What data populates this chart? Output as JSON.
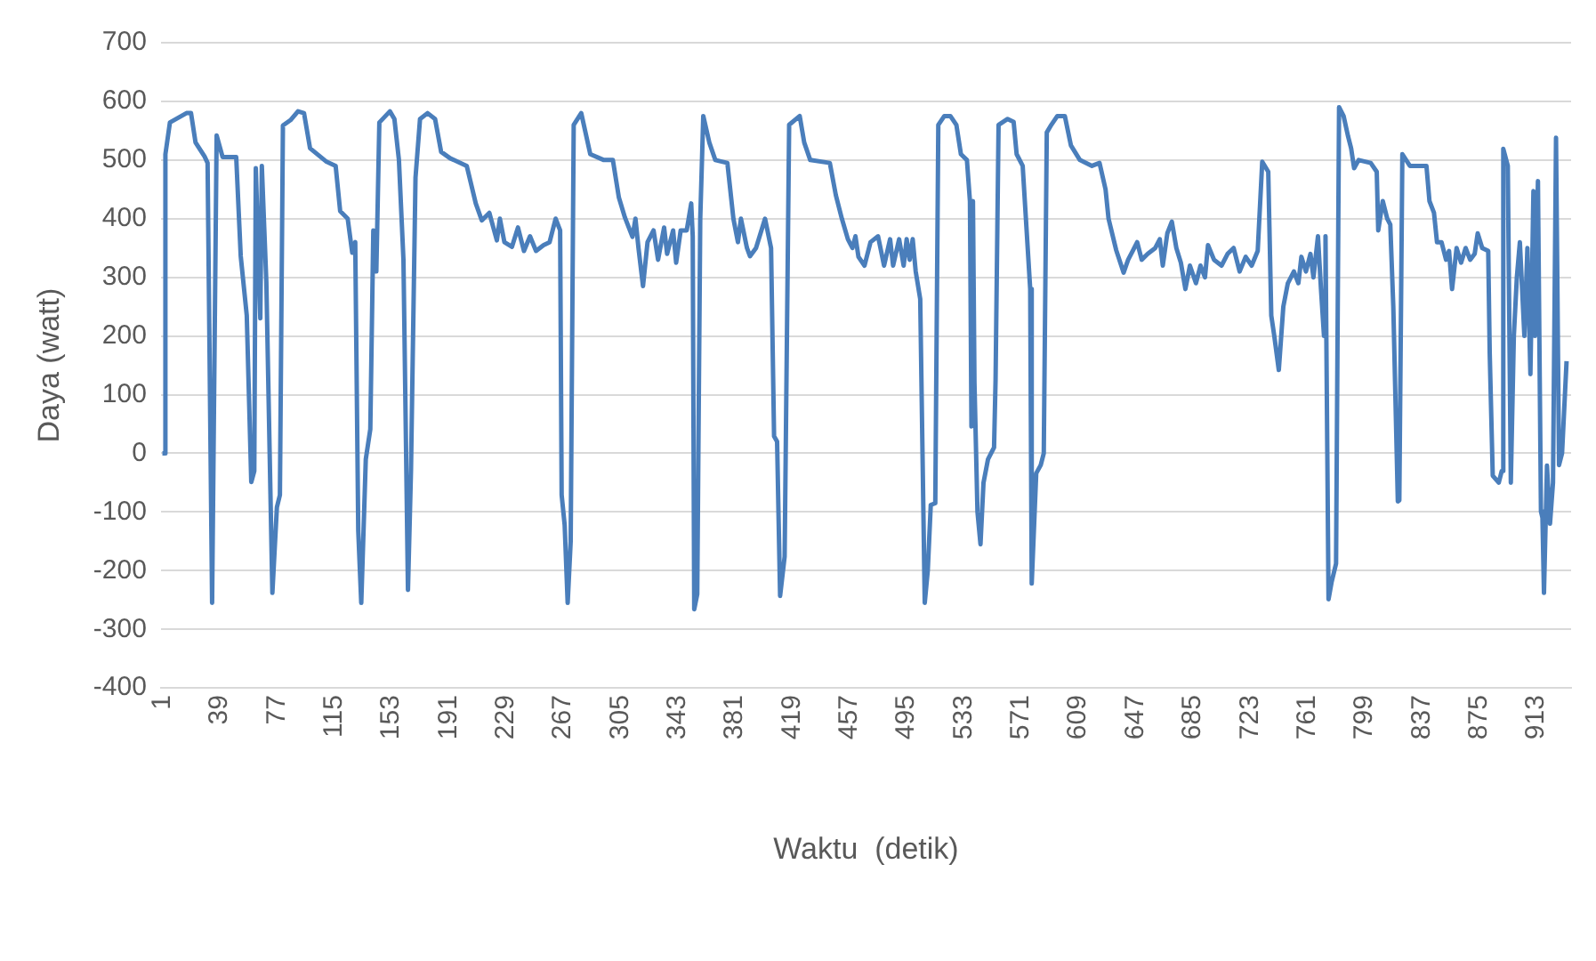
{
  "chart_data": {
    "type": "line",
    "xlabel": "Waktu  (detik)",
    "ylabel": "Daya (watt)",
    "xlim": [
      0,
      936
    ],
    "xticks": [
      1,
      39,
      77,
      115,
      153,
      191,
      229,
      267,
      305,
      343,
      381,
      419,
      457,
      495,
      533,
      571,
      609,
      647,
      685,
      723,
      761,
      799,
      837,
      875,
      913
    ],
    "ylim": [
      -400,
      700
    ],
    "yticks": [
      -400,
      -300,
      -200,
      -100,
      0,
      100,
      200,
      300,
      400,
      500,
      600,
      700
    ],
    "grid": "y",
    "legend": false,
    "marker": "none",
    "line_style": "solid",
    "series": [
      {
        "color": "#4a7ebb",
        "x": [
          1,
          2,
          3,
          6,
          17,
          20,
          23,
          29,
          31,
          34,
          37,
          41,
          50,
          53,
          57,
          60,
          62,
          63,
          66,
          67,
          70,
          74,
          77,
          79,
          81,
          86,
          91,
          95,
          99,
          110,
          116,
          119,
          124,
          127,
          129,
          131,
          133,
          136,
          139,
          141,
          143,
          145,
          152,
          155,
          158,
          161,
          164,
          166,
          169,
          172,
          177,
          182,
          186,
          192,
          203,
          209,
          213,
          218,
          223,
          225,
          228,
          233,
          237,
          241,
          245,
          249,
          254,
          258,
          262,
          265,
          266,
          268,
          270,
          272,
          274,
          279,
          285,
          294,
          300,
          304,
          308,
          313,
          315,
          317,
          320,
          323,
          327,
          330,
          334,
          336,
          340,
          342,
          345,
          349,
          352,
          353,
          354,
          356,
          358,
          360,
          364,
          368,
          376,
          380,
          383,
          385,
          389,
          391,
          395,
          401,
          405,
          407,
          409,
          411,
          414,
          417,
          424,
          427,
          431,
          444,
          448,
          452,
          456,
          459,
          461,
          463,
          467,
          471,
          476,
          480,
          484,
          486,
          490,
          493,
          495,
          497,
          499,
          501,
          504,
          507,
          509,
          511,
          514,
          516,
          520,
          524,
          528,
          531,
          535,
          537,
          538,
          539,
          540,
          542,
          544,
          546,
          549,
          553,
          554,
          556,
          562,
          566,
          568,
          572,
          577,
          578,
          581,
          584,
          586,
          588,
          591,
          595,
          600,
          604,
          610,
          618,
          623,
          627,
          629,
          634,
          639,
          642,
          645,
          648,
          651,
          655,
          660,
          663,
          665,
          668,
          671,
          674,
          677,
          680,
          683,
          687,
          690,
          693,
          695,
          699,
          704,
          708,
          712,
          716,
          720,
          724,
          728,
          731,
          735,
          737,
          739,
          742,
          745,
          748,
          752,
          755,
          757,
          760,
          763,
          765,
          768,
          770,
          772,
          773,
          775,
          777,
          780,
          782,
          785,
          788,
          790,
          792,
          795,
          803,
          807,
          808,
          811,
          814,
          816,
          818,
          821,
          822,
          824,
          829,
          840,
          842,
          845,
          847,
          850,
          853,
          855,
          857,
          860,
          863,
          866,
          869,
          872,
          874,
          877,
          881,
          882,
          884,
          888,
          890,
          891,
          894,
          896,
          898,
          900,
          902,
          905,
          907,
          909,
          911,
          912,
          914,
          916,
          917,
          918,
          920,
          922,
          924,
          926,
          928,
          930,
          933
        ],
        "values": [
          0,
          0,
          510,
          564,
          580,
          580,
          530,
          506,
          495,
          -255,
          542,
          505,
          505,
          336,
          235,
          -49,
          -30,
          486,
          230,
          490,
          292,
          -238,
          -92,
          -71,
          559,
          568,
          583,
          580,
          520,
          497,
          490,
          413,
          400,
          342,
          360,
          -132,
          -255,
          -10,
          41,
          380,
          310,
          564,
          583,
          570,
          500,
          330,
          -233,
          -30,
          470,
          570,
          580,
          570,
          514,
          503,
          490,
          426,
          397,
          410,
          363,
          400,
          360,
          352,
          385,
          345,
          370,
          345,
          355,
          360,
          400,
          380,
          -71,
          -122,
          -255,
          -150,
          560,
          580,
          510,
          500,
          500,
          436,
          402,
          369,
          400,
          350,
          285,
          360,
          380,
          330,
          385,
          340,
          380,
          325,
          380,
          380,
          426,
          370,
          -266,
          -240,
          400,
          575,
          530,
          500,
          495,
          400,
          360,
          400,
          350,
          336,
          350,
          400,
          350,
          29,
          20,
          -243,
          -176,
          560,
          575,
          530,
          500,
          495,
          440,
          400,
          365,
          350,
          370,
          335,
          320,
          360,
          370,
          320,
          365,
          320,
          365,
          320,
          365,
          330,
          365,
          310,
          263,
          -255,
          -200,
          -88,
          -85,
          560,
          575,
          575,
          560,
          510,
          500,
          430,
          46,
          430,
          120,
          -100,
          -155,
          -50,
          -10,
          10,
          124,
          560,
          570,
          565,
          510,
          490,
          280,
          -222,
          -34,
          -20,
          0,
          547,
          560,
          575,
          575,
          525,
          500,
          490,
          495,
          450,
          400,
          347,
          308,
          330,
          345,
          360,
          330,
          340,
          350,
          365,
          320,
          375,
          395,
          350,
          325,
          280,
          320,
          290,
          320,
          300,
          355,
          330,
          320,
          340,
          350,
          310,
          335,
          320,
          345,
          497,
          480,
          235,
          200,
          142,
          250,
          290,
          310,
          290,
          335,
          310,
          340,
          300,
          370,
          280,
          200,
          370,
          -249,
          -220,
          -188,
          590,
          575,
          540,
          520,
          486,
          500,
          495,
          480,
          380,
          430,
          400,
          390,
          250,
          -82,
          -80,
          510,
          490,
          490,
          430,
          410,
          360,
          360,
          330,
          345,
          280,
          350,
          325,
          350,
          330,
          340,
          375,
          350,
          345,
          170,
          -38,
          -50,
          -30,
          519,
          490,
          -50,
          200,
          300,
          360,
          200,
          350,
          135,
          447,
          200,
          464,
          -99,
          -110,
          -238,
          -21,
          -120,
          -50,
          538,
          -20,
          0,
          157
        ]
      }
    ]
  }
}
